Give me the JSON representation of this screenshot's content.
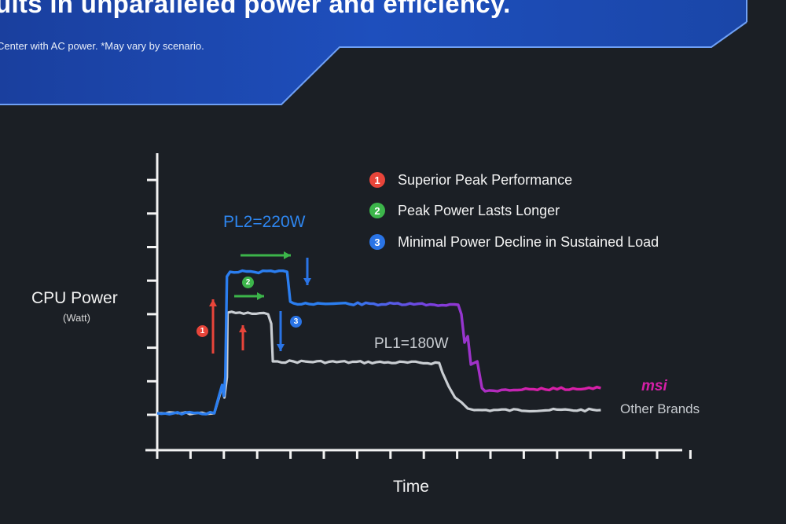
{
  "banner": {
    "headline": "ults in unparalleled power and efficiency.",
    "footnote": "Center with AC power. *May vary by scenario."
  },
  "colors": {
    "background": "#1b1f25",
    "banner_blue": "#1746b8",
    "msi_line_start": "#2b7ef0",
    "msi_line_end": "#d61fa8",
    "other_line": "#c9cdd2",
    "badge_1": "#e8453a",
    "badge_2": "#3cb54a",
    "badge_3": "#2a74e6"
  },
  "chart_data": {
    "type": "line",
    "ylabel": "CPU Power",
    "yunit": "(Watt)",
    "xlabel": "Time",
    "y_ticks": 8,
    "x_ticks": 16,
    "xlim": [
      0,
      16
    ],
    "ylim": [
      0,
      8.2
    ],
    "series": [
      {
        "name": "msi",
        "points": [
          [
            0,
            0.05
          ],
          [
            1.8,
            0.05
          ],
          [
            1.95,
            0.6
          ],
          [
            2.05,
            0.95
          ],
          [
            2.1,
            0.6
          ],
          [
            2.15,
            1.2
          ],
          [
            2.2,
            4.4
          ],
          [
            2.3,
            4.55
          ],
          [
            4.1,
            4.55
          ],
          [
            4.2,
            3.6
          ],
          [
            4.3,
            3.55
          ],
          [
            9.5,
            3.5
          ],
          [
            9.6,
            3.2
          ],
          [
            9.7,
            2.3
          ],
          [
            9.8,
            2.5
          ],
          [
            9.9,
            1.6
          ],
          [
            10.1,
            1.7
          ],
          [
            10.25,
            0.85
          ],
          [
            10.35,
            0.75
          ],
          [
            11,
            0.8
          ],
          [
            14,
            0.85
          ]
        ]
      },
      {
        "name": "Other Brands",
        "points": [
          [
            0,
            0.05
          ],
          [
            1.8,
            0.05
          ],
          [
            1.95,
            0.55
          ],
          [
            2.05,
            0.9
          ],
          [
            2.12,
            0.55
          ],
          [
            2.2,
            1.2
          ],
          [
            2.22,
            3.25
          ],
          [
            3.5,
            3.2
          ],
          [
            3.6,
            2.9
          ],
          [
            3.65,
            1.7
          ],
          [
            3.8,
            1.7
          ],
          [
            8.9,
            1.65
          ],
          [
            9.0,
            1.35
          ],
          [
            9.2,
            0.9
          ],
          [
            9.4,
            0.55
          ],
          [
            9.6,
            0.4
          ],
          [
            9.8,
            0.2
          ],
          [
            10,
            0.15
          ],
          [
            14,
            0.15
          ]
        ]
      }
    ],
    "annotations": {
      "pl2": "PL2=220W",
      "pl1": "PL1=180W"
    },
    "legend": [
      {
        "num": "1",
        "text": "Superior Peak Performance"
      },
      {
        "num": "2",
        "text": "Peak Power Lasts Longer"
      },
      {
        "num": "3",
        "text": "Minimal Power Decline in Sustained Load"
      }
    ],
    "step_badges": [
      "1",
      "2",
      "3"
    ]
  }
}
